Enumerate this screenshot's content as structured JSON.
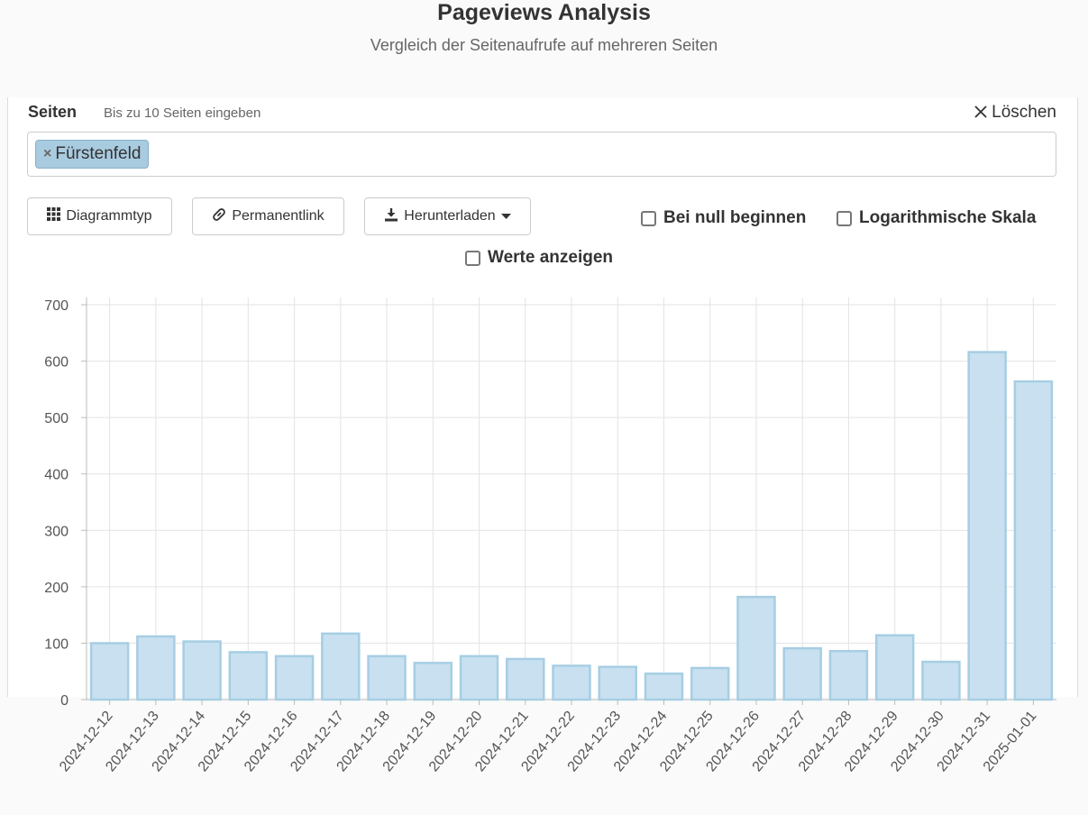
{
  "header": {
    "title": "Pageviews Analysis",
    "subtitle": "Vergleich der Seitenaufrufe auf mehreren Seiten"
  },
  "pages": {
    "label": "Seiten",
    "hint": "Bis zu 10 Seiten eingeben",
    "clear_label": "Löschen",
    "chips": [
      "Fürstenfeld"
    ],
    "chip_remove_glyph": "×"
  },
  "toolbar": {
    "chart_type_label": "Diagrammtyp",
    "permalink_label": "Permanentlink",
    "download_label": "Herunterladen"
  },
  "options": {
    "begin_at_zero": "Bei null beginnen",
    "log_scale": "Logarithmische Skala",
    "show_values": "Werte anzeigen"
  },
  "icons": {
    "grid": "grid-icon",
    "link": "link-icon",
    "download": "download-icon",
    "caret": "caret-down-icon",
    "close": "close-icon"
  },
  "colors": {
    "bar_fill": "#c9e0f0",
    "bar_stroke": "#a6cee3",
    "chip_bg": "#a9cbe0"
  },
  "chart_data": {
    "type": "bar",
    "categories": [
      "2024-12-12",
      "2024-12-13",
      "2024-12-14",
      "2024-12-15",
      "2024-12-16",
      "2024-12-17",
      "2024-12-18",
      "2024-12-19",
      "2024-12-20",
      "2024-12-21",
      "2024-12-22",
      "2024-12-23",
      "2024-12-24",
      "2024-12-25",
      "2024-12-26",
      "2024-12-27",
      "2024-12-28",
      "2024-12-29",
      "2024-12-30",
      "2024-12-31",
      "2025-01-01"
    ],
    "series": [
      {
        "name": "Fürstenfeld",
        "values": [
          100,
          112,
          103,
          84,
          77,
          117,
          77,
          65,
          77,
          72,
          60,
          58,
          46,
          56,
          182,
          91,
          86,
          114,
          67,
          616,
          564
        ]
      }
    ],
    "ylim": [
      0,
      700
    ],
    "yticks": [
      0,
      100,
      200,
      300,
      400,
      500,
      600,
      700
    ],
    "grid": true
  }
}
